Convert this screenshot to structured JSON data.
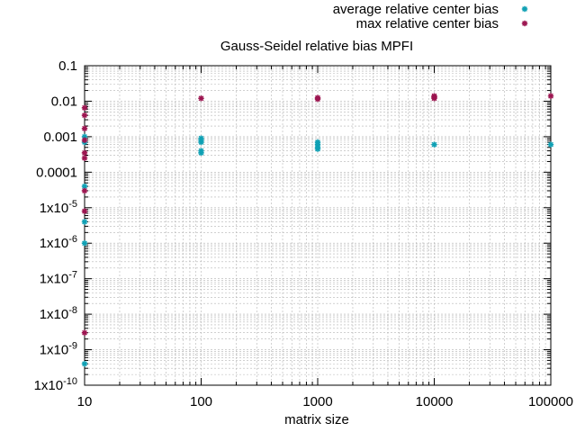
{
  "chart_data": {
    "type": "scatter",
    "title": "Gauss-Seidel relative bias MPFI",
    "xlabel": "matrix size",
    "ylabel": "",
    "x_scale": "log",
    "y_scale": "log",
    "xlim": [
      10,
      100000
    ],
    "ylim": [
      1e-10,
      0.1
    ],
    "grid": true,
    "legend_position": "top-right",
    "x_ticks": [
      {
        "value": 10,
        "label": "10"
      },
      {
        "value": 100,
        "label": "100"
      },
      {
        "value": 1000,
        "label": "1000"
      },
      {
        "value": 10000,
        "label": "10000"
      },
      {
        "value": 100000,
        "label": "100000"
      }
    ],
    "y_ticks": [
      {
        "value": 1e-10,
        "base": "1x10",
        "exp": "-10"
      },
      {
        "value": 1e-09,
        "base": "1x10",
        "exp": "-9"
      },
      {
        "value": 1e-08,
        "base": "1x10",
        "exp": "-8"
      },
      {
        "value": 1e-07,
        "base": "1x10",
        "exp": "-7"
      },
      {
        "value": 1e-06,
        "base": "1x10",
        "exp": "-6"
      },
      {
        "value": 1e-05,
        "base": "1x10",
        "exp": "-5"
      },
      {
        "value": 0.0001,
        "base": "0.0001",
        "exp": ""
      },
      {
        "value": 0.001,
        "base": "0.001",
        "exp": ""
      },
      {
        "value": 0.01,
        "base": "0.01",
        "exp": ""
      },
      {
        "value": 0.1,
        "base": "0.1",
        "exp": ""
      }
    ],
    "series": [
      {
        "name": "average relative center bias",
        "color": "#0fa0b4",
        "points": [
          [
            10,
            4e-10
          ],
          [
            10,
            1e-06
          ],
          [
            10,
            4e-06
          ],
          [
            10,
            4e-05
          ],
          [
            10,
            0.0007
          ],
          [
            10,
            0.001
          ],
          [
            100,
            0.00035
          ],
          [
            100,
            0.0004
          ],
          [
            100,
            0.0007
          ],
          [
            100,
            0.0008
          ],
          [
            100,
            0.0009
          ],
          [
            1000,
            0.00045
          ],
          [
            1000,
            0.0005
          ],
          [
            1000,
            0.0006
          ],
          [
            1000,
            0.0007
          ],
          [
            10000,
            0.0006
          ],
          [
            100000,
            0.0006
          ]
        ]
      },
      {
        "name": "max relative center bias",
        "color": "#9c1550",
        "points": [
          [
            10,
            3e-09
          ],
          [
            10,
            8e-06
          ],
          [
            10,
            3e-05
          ],
          [
            10,
            0.00025
          ],
          [
            10,
            0.00035
          ],
          [
            10,
            0.0008
          ],
          [
            10,
            0.0017
          ],
          [
            10,
            0.004
          ],
          [
            10,
            0.0065
          ],
          [
            100,
            0.012
          ],
          [
            1000,
            0.0115
          ],
          [
            1000,
            0.0125
          ],
          [
            10000,
            0.012
          ],
          [
            10000,
            0.013
          ],
          [
            10000,
            0.014
          ],
          [
            100000,
            0.014
          ]
        ]
      }
    ]
  }
}
